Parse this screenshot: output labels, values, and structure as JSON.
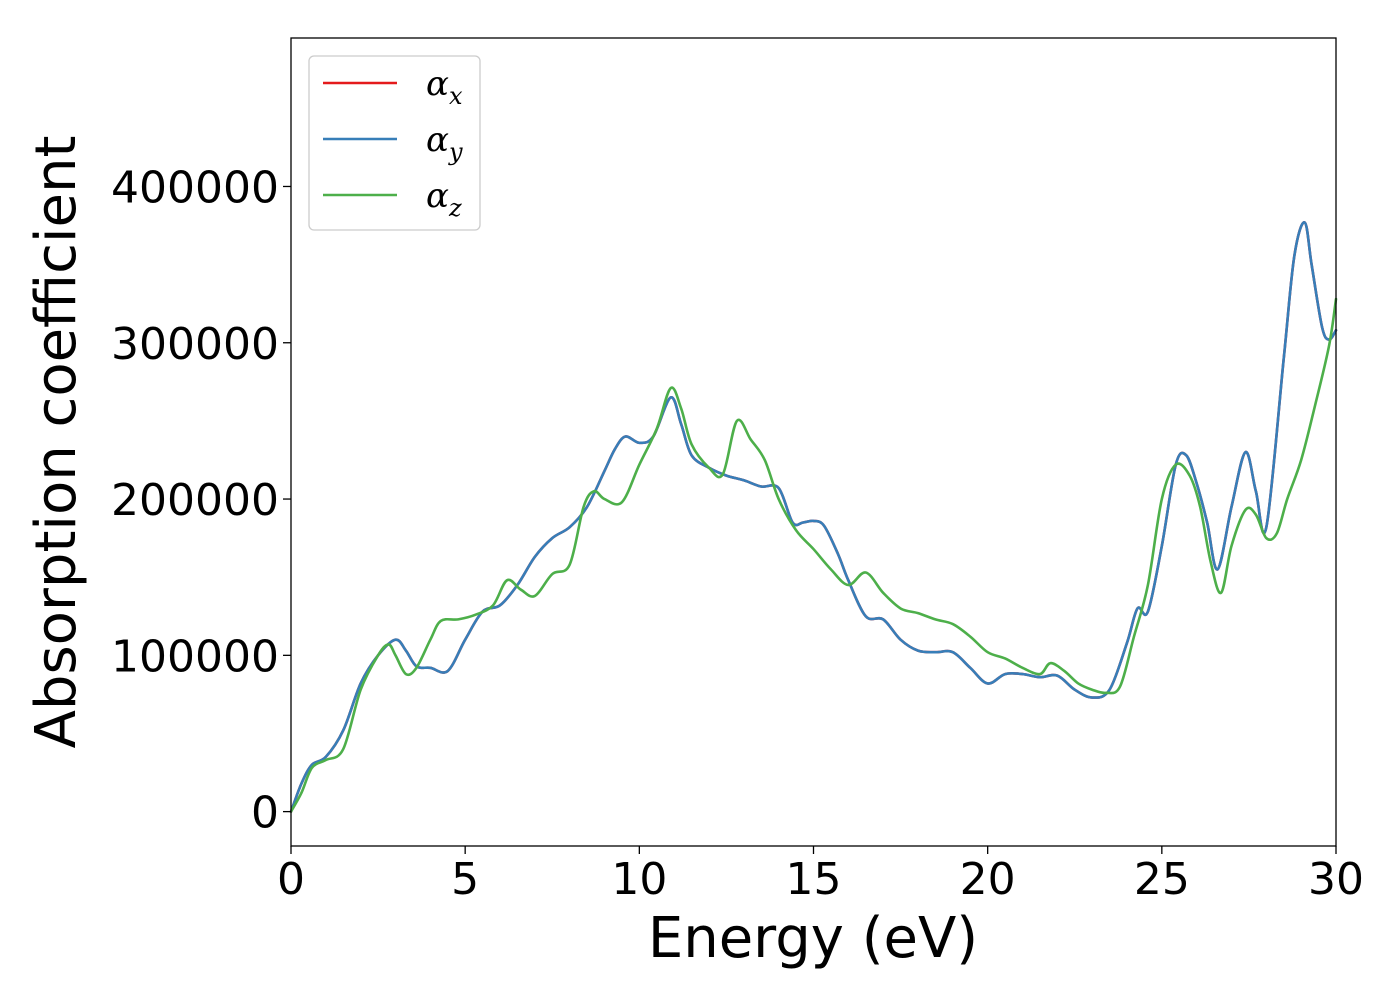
{
  "chart_data": {
    "type": "line",
    "xlabel": "Energy (eV)",
    "ylabel": "Absorption coefficient",
    "xlim": [
      0,
      30
    ],
    "ylim": [
      -22000,
      495000
    ],
    "xticks": [
      0,
      5,
      10,
      15,
      20,
      25,
      30
    ],
    "xtick_labels": [
      "0",
      "5",
      "10",
      "15",
      "20",
      "25",
      "30"
    ],
    "yticks": [
      0,
      100000,
      200000,
      300000,
      400000
    ],
    "ytick_labels": [
      "0",
      "100000",
      "200000",
      "300000",
      "400000"
    ],
    "grid": false,
    "legend_position": "top-left",
    "series": [
      {
        "name_base": "α",
        "name_sub": "x",
        "color": "#e41a1c",
        "x": [
          0,
          0.3,
          0.6,
          1.0,
          1.5,
          2.0,
          2.5,
          3.0,
          3.3,
          3.6,
          4.0,
          4.5,
          5.0,
          5.5,
          6.0,
          6.5,
          7.0,
          7.5,
          8.0,
          8.5,
          9.0,
          9.3,
          9.6,
          10.0,
          10.4,
          10.9,
          11.2,
          11.5,
          12.0,
          12.5,
          13.0,
          13.5,
          14.0,
          14.4,
          14.7,
          15.0,
          15.3,
          15.7,
          16.0,
          16.5,
          17.0,
          17.5,
          18.0,
          18.5,
          19.0,
          19.5,
          20.0,
          20.5,
          21.0,
          21.5,
          22.0,
          22.5,
          23.0,
          23.5,
          24.0,
          24.3,
          24.6,
          25.0,
          25.4,
          25.7,
          26.0,
          26.3,
          26.6,
          27.0,
          27.4,
          27.7,
          28.0,
          28.5,
          28.8,
          29.1,
          29.3,
          29.6,
          29.8,
          30.0
        ],
        "values": [
          0,
          18000,
          30000,
          35000,
          52000,
          82000,
          100000,
          110000,
          103000,
          93000,
          92000,
          90000,
          110000,
          128000,
          132000,
          145000,
          163000,
          175000,
          182000,
          195000,
          218000,
          232000,
          240000,
          236000,
          240000,
          265000,
          248000,
          228000,
          220000,
          215000,
          212000,
          208000,
          207000,
          185000,
          185000,
          186000,
          183000,
          165000,
          148000,
          125000,
          123000,
          110000,
          103000,
          102000,
          102000,
          92000,
          82000,
          88000,
          88000,
          86000,
          87000,
          78000,
          73000,
          78000,
          108000,
          130000,
          128000,
          170000,
          222000,
          228000,
          210000,
          185000,
          155000,
          195000,
          230000,
          205000,
          182000,
          290000,
          355000,
          377000,
          350000,
          310000,
          302000,
          308000
        ]
      },
      {
        "name_base": "α",
        "name_sub": "y",
        "color": "#377eb8",
        "x": [
          0,
          0.3,
          0.6,
          1.0,
          1.5,
          2.0,
          2.5,
          3.0,
          3.3,
          3.6,
          4.0,
          4.5,
          5.0,
          5.5,
          6.0,
          6.5,
          7.0,
          7.5,
          8.0,
          8.5,
          9.0,
          9.3,
          9.6,
          10.0,
          10.4,
          10.9,
          11.2,
          11.5,
          12.0,
          12.5,
          13.0,
          13.5,
          14.0,
          14.4,
          14.7,
          15.0,
          15.3,
          15.7,
          16.0,
          16.5,
          17.0,
          17.5,
          18.0,
          18.5,
          19.0,
          19.5,
          20.0,
          20.5,
          21.0,
          21.5,
          22.0,
          22.5,
          23.0,
          23.5,
          24.0,
          24.3,
          24.6,
          25.0,
          25.4,
          25.7,
          26.0,
          26.3,
          26.6,
          27.0,
          27.4,
          27.7,
          28.0,
          28.5,
          28.8,
          29.1,
          29.3,
          29.6,
          29.8,
          30.0
        ],
        "values": [
          0,
          18000,
          30000,
          35000,
          52000,
          82000,
          100000,
          110000,
          103000,
          93000,
          92000,
          90000,
          110000,
          128000,
          132000,
          145000,
          163000,
          175000,
          182000,
          195000,
          218000,
          232000,
          240000,
          236000,
          240000,
          265000,
          248000,
          228000,
          220000,
          215000,
          212000,
          208000,
          207000,
          185000,
          185000,
          186000,
          183000,
          165000,
          148000,
          125000,
          123000,
          110000,
          103000,
          102000,
          102000,
          92000,
          82000,
          88000,
          88000,
          86000,
          87000,
          78000,
          73000,
          78000,
          108000,
          130000,
          128000,
          170000,
          222000,
          228000,
          210000,
          185000,
          155000,
          195000,
          230000,
          205000,
          182000,
          290000,
          355000,
          377000,
          350000,
          310000,
          302000,
          308000
        ]
      },
      {
        "name_base": "α",
        "name_sub": "z",
        "color": "#4daf4a",
        "x": [
          0,
          0.3,
          0.6,
          1.0,
          1.5,
          2.0,
          2.5,
          2.8,
          3.0,
          3.3,
          3.6,
          4.0,
          4.3,
          4.8,
          5.3,
          5.8,
          6.2,
          6.6,
          7.0,
          7.5,
          8.0,
          8.4,
          8.7,
          9.0,
          9.5,
          10.0,
          10.5,
          10.9,
          11.2,
          11.5,
          12.0,
          12.4,
          12.8,
          13.2,
          13.6,
          14.0,
          14.5,
          15.0,
          15.5,
          16.0,
          16.5,
          17.0,
          17.5,
          18.0,
          18.5,
          19.0,
          19.5,
          20.0,
          20.5,
          21.0,
          21.5,
          21.8,
          22.2,
          22.6,
          23.0,
          23.4,
          23.8,
          24.2,
          24.6,
          25.0,
          25.4,
          25.8,
          26.1,
          26.4,
          26.7,
          27.0,
          27.4,
          27.7,
          28.0,
          28.3,
          28.6,
          29.0,
          29.4,
          29.8,
          30.0
        ],
        "values": [
          0,
          12000,
          28000,
          33000,
          40000,
          78000,
          100000,
          107000,
          100000,
          88000,
          92000,
          110000,
          122000,
          123000,
          126000,
          132000,
          148000,
          142000,
          138000,
          152000,
          158000,
          195000,
          205000,
          200000,
          198000,
          222000,
          245000,
          271000,
          258000,
          235000,
          220000,
          216000,
          250000,
          238000,
          225000,
          200000,
          180000,
          168000,
          155000,
          145000,
          153000,
          140000,
          130000,
          127000,
          123000,
          120000,
          112000,
          102000,
          98000,
          92000,
          88000,
          95000,
          90000,
          82000,
          78000,
          76000,
          80000,
          112000,
          145000,
          200000,
          222000,
          215000,
          195000,
          160000,
          140000,
          170000,
          193000,
          190000,
          175000,
          178000,
          200000,
          225000,
          260000,
          298000,
          328000
        ]
      }
    ]
  }
}
